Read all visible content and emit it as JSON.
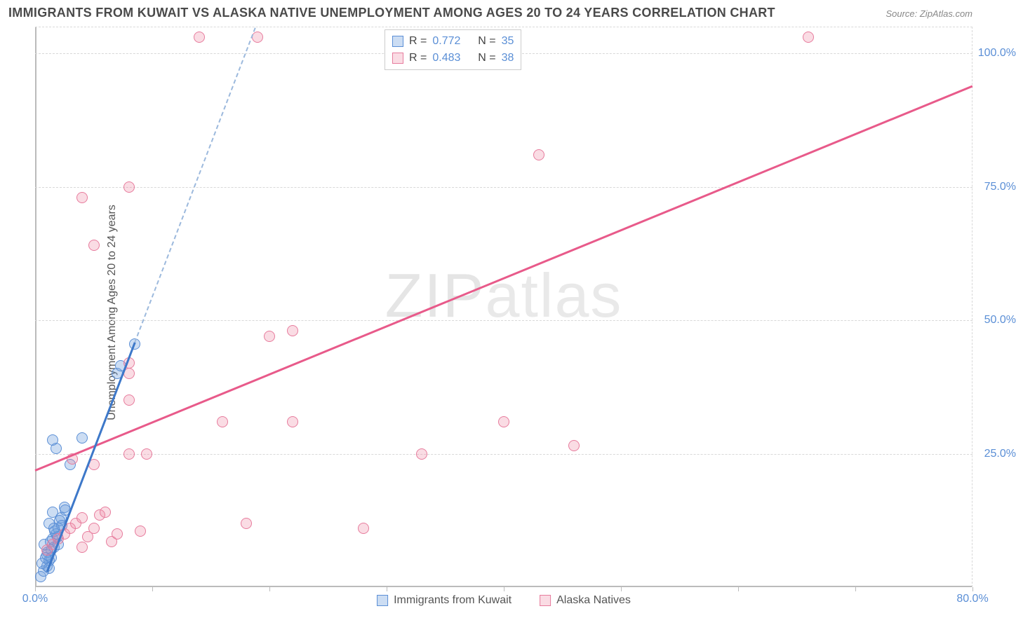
{
  "title": "IMMIGRANTS FROM KUWAIT VS ALASKA NATIVE UNEMPLOYMENT AMONG AGES 20 TO 24 YEARS CORRELATION CHART",
  "source": "Source: ZipAtlas.com",
  "ylabel": "Unemployment Among Ages 20 to 24 years",
  "watermark_a": "ZIP",
  "watermark_b": "atlas",
  "chart": {
    "type": "scatter",
    "xlim": [
      0,
      80
    ],
    "ylim": [
      0,
      105
    ],
    "xticks": [
      0,
      10,
      20,
      30,
      40,
      50,
      60,
      70,
      80
    ],
    "xtick_labels": {
      "0": "0.0%",
      "80": "80.0%"
    },
    "yticks": [
      25,
      50,
      75,
      100
    ],
    "ytick_labels": {
      "25": "25.0%",
      "50": "50.0%",
      "75": "75.0%",
      "100": "100.0%"
    },
    "grid_color": "#d8d8d8",
    "background": "#ffffff"
  },
  "series": [
    {
      "name": "Immigrants from Kuwait",
      "color_fill": "rgba(108,158,220,0.35)",
      "color_stroke": "#5b8fd6",
      "trend_color": "#3d78c9",
      "trend_dash_color": "#9cb9dd",
      "R": "0.772",
      "N": "35",
      "trend": {
        "x1": 1,
        "y1": 3,
        "x2": 8.5,
        "y2": 46,
        "x_solid_end": 8.5,
        "x_dash_end": 19
      },
      "points": [
        [
          0.5,
          2
        ],
        [
          0.7,
          3
        ],
        [
          1,
          4
        ],
        [
          1.2,
          5
        ],
        [
          1,
          6
        ],
        [
          1.4,
          7
        ],
        [
          0.8,
          8
        ],
        [
          1.5,
          9
        ],
        [
          1.8,
          10
        ],
        [
          2,
          11
        ],
        [
          1.2,
          12
        ],
        [
          2.2,
          13
        ],
        [
          1.5,
          14
        ],
        [
          2.5,
          15
        ],
        [
          0.6,
          4.5
        ],
        [
          1.1,
          6.5
        ],
        [
          1.3,
          8.5
        ],
        [
          1.7,
          10.5
        ],
        [
          2.1,
          12.5
        ],
        [
          1.4,
          5.5
        ],
        [
          1.6,
          7.5
        ],
        [
          1.9,
          9.5
        ],
        [
          2.3,
          11.5
        ],
        [
          2.6,
          14.5
        ],
        [
          1.8,
          26
        ],
        [
          1.5,
          27.5
        ],
        [
          3,
          23
        ],
        [
          4,
          28
        ],
        [
          7,
          40
        ],
        [
          7.3,
          41.5
        ],
        [
          8.5,
          45.5
        ],
        [
          1.2,
          3.5
        ],
        [
          0.9,
          5.5
        ],
        [
          1.6,
          11
        ],
        [
          2,
          8
        ]
      ]
    },
    {
      "name": "Alaska Natives",
      "color_fill": "rgba(240,140,165,0.30)",
      "color_stroke": "#e77c9d",
      "trend_color": "#e85a8a",
      "R": "0.483",
      "N": "38",
      "trend": {
        "x1": 0,
        "y1": 22,
        "x2": 80,
        "y2": 94
      },
      "points": [
        [
          1,
          7
        ],
        [
          1.5,
          8
        ],
        [
          2,
          9
        ],
        [
          2.5,
          10
        ],
        [
          3,
          11
        ],
        [
          3.5,
          12
        ],
        [
          4,
          13
        ],
        [
          4.5,
          9.5
        ],
        [
          5,
          11
        ],
        [
          5.5,
          13.5
        ],
        [
          6,
          14
        ],
        [
          6.5,
          8.5
        ],
        [
          7,
          10
        ],
        [
          9,
          10.5
        ],
        [
          4,
          7.5
        ],
        [
          3.2,
          24
        ],
        [
          5,
          23
        ],
        [
          8,
          25
        ],
        [
          9.5,
          25
        ],
        [
          8,
          35
        ],
        [
          8,
          40
        ],
        [
          8,
          42
        ],
        [
          18,
          12
        ],
        [
          16,
          31
        ],
        [
          22,
          31
        ],
        [
          28,
          11
        ],
        [
          20,
          47
        ],
        [
          22,
          48
        ],
        [
          33,
          25
        ],
        [
          40,
          31
        ],
        [
          46,
          26.5
        ],
        [
          43,
          81
        ],
        [
          4,
          73
        ],
        [
          5,
          64
        ],
        [
          8,
          75
        ],
        [
          14,
          103
        ],
        [
          19,
          103
        ],
        [
          66,
          103
        ]
      ]
    }
  ],
  "stats_labels": {
    "R": "R =",
    "N": "N ="
  },
  "legend": [
    {
      "label": "Immigrants from Kuwait",
      "swatch": "blue"
    },
    {
      "label": "Alaska Natives",
      "swatch": "pink"
    }
  ]
}
